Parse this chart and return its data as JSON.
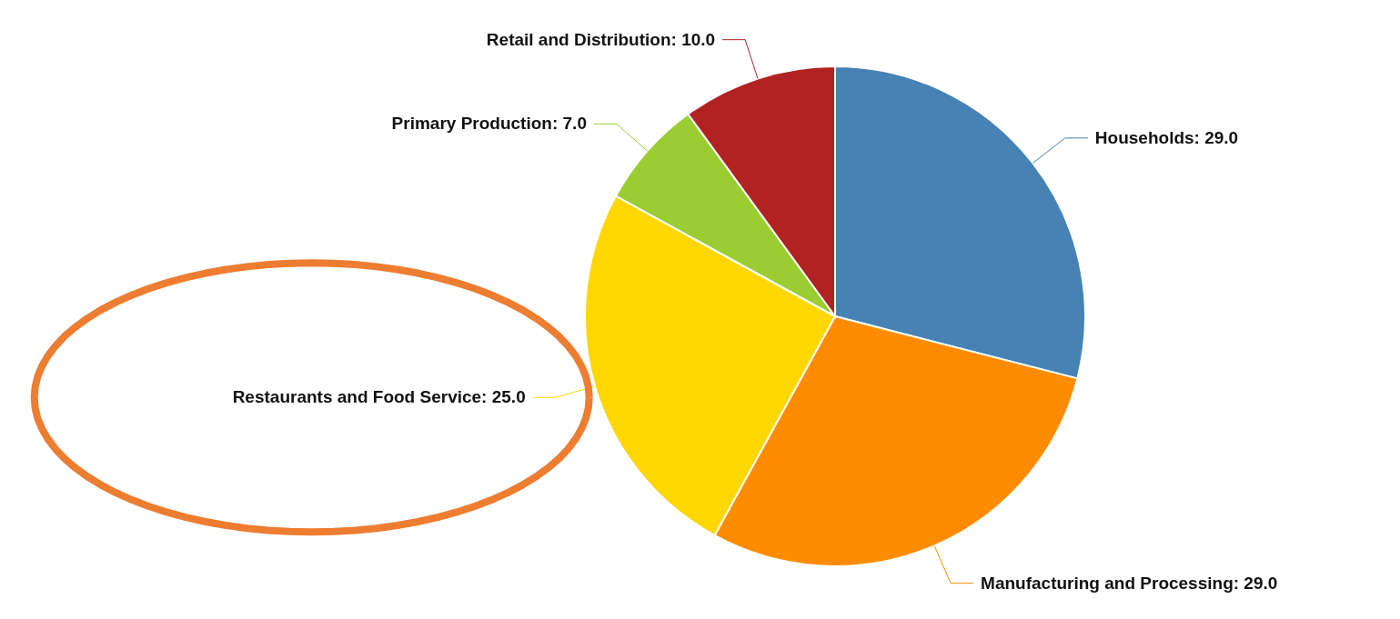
{
  "chart_data": {
    "type": "pie",
    "categories": [
      "Households",
      "Manufacturing and Processing",
      "Restaurants and Food Service",
      "Primary Production",
      "Retail and Distribution"
    ],
    "values": [
      29.0,
      29.0,
      25.0,
      7.0,
      10.0
    ],
    "value_labels": [
      "29.0",
      "29.0",
      "25.0",
      "7.0",
      "10.0"
    ],
    "colors": [
      "#4682b4",
      "#ff8c00",
      "#ffd700",
      "#9acd32",
      "#b22222"
    ],
    "legend": false
  }
}
